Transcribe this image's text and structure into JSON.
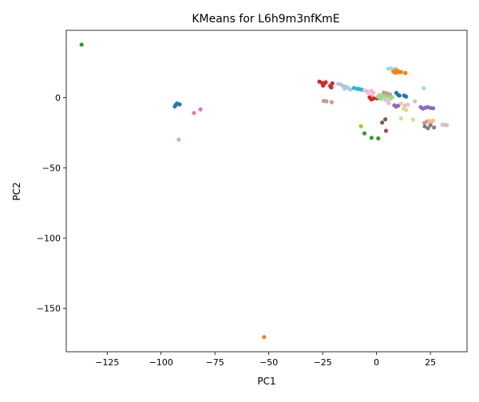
{
  "chart_data": {
    "type": "scatter",
    "title": "KMeans for L6h9m3nfKmE",
    "xlabel": "PC1",
    "ylabel": "PC2",
    "xlim": [
      -144,
      42
    ],
    "ylim": [
      -181,
      48
    ],
    "xticks": [
      -125,
      -100,
      -75,
      -50,
      -25,
      0,
      25
    ],
    "yticks": [
      0,
      -50,
      -100,
      -150
    ],
    "xtick_labels": [
      "−125",
      "−100",
      "−75",
      "−50",
      "−25",
      "0",
      "25"
    ],
    "ytick_labels": [
      "0",
      "−50",
      "−100",
      "−150"
    ],
    "grid": false,
    "legend": "none",
    "points": [
      {
        "x": -136.9,
        "y": 37.8,
        "color": "#2ca02c"
      },
      {
        "x": -52.2,
        "y": -170.6,
        "color": "#ff7f0e"
      },
      {
        "x": -93.1,
        "y": -5.0,
        "color": "#1f77b4"
      },
      {
        "x": -92.6,
        "y": -4.1,
        "color": "#1f77b4"
      },
      {
        "x": -91.4,
        "y": -4.8,
        "color": "#1f77b4"
      },
      {
        "x": -93.6,
        "y": -6.2,
        "color": "#1f77b4"
      },
      {
        "x": -91.8,
        "y": -29.9,
        "color": "#c5b0d5"
      },
      {
        "x": -84.7,
        "y": -10.9,
        "color": "#e377c2"
      },
      {
        "x": -81.7,
        "y": -8.3,
        "color": "#e377c2"
      },
      {
        "x": -26.5,
        "y": 11.4,
        "color": "#d62728"
      },
      {
        "x": -25.3,
        "y": 10.5,
        "color": "#d62728"
      },
      {
        "x": -24.3,
        "y": 9.8,
        "color": "#d62728"
      },
      {
        "x": -23.6,
        "y": 11.0,
        "color": "#d62728"
      },
      {
        "x": -24.8,
        "y": 8.6,
        "color": "#d62728"
      },
      {
        "x": -21.5,
        "y": 8.4,
        "color": "#d62728"
      },
      {
        "x": -20.5,
        "y": 10.2,
        "color": "#d62728"
      },
      {
        "x": -21.0,
        "y": 7.3,
        "color": "#d62728"
      },
      {
        "x": -24.5,
        "y": -2.3,
        "color": "#c49c94"
      },
      {
        "x": -23.2,
        "y": -2.6,
        "color": "#c49c94"
      },
      {
        "x": -20.8,
        "y": -3.2,
        "color": "#c49c94"
      },
      {
        "x": -17.8,
        "y": 9.8,
        "color": "#aec7e8"
      },
      {
        "x": -16.5,
        "y": 9.3,
        "color": "#aec7e8"
      },
      {
        "x": -15.4,
        "y": 8.2,
        "color": "#aec7e8"
      },
      {
        "x": -14.2,
        "y": 7.9,
        "color": "#aec7e8"
      },
      {
        "x": -13.4,
        "y": 7.1,
        "color": "#aec7e8"
      },
      {
        "x": -14.8,
        "y": 6.4,
        "color": "#aec7e8"
      },
      {
        "x": -12.1,
        "y": 5.8,
        "color": "#aec7e8"
      },
      {
        "x": -10.5,
        "y": 6.9,
        "color": "#17becf"
      },
      {
        "x": -9.0,
        "y": 6.3,
        "color": "#17becf"
      },
      {
        "x": -7.8,
        "y": 6.1,
        "color": "#17becf"
      },
      {
        "x": -6.7,
        "y": 5.6,
        "color": "#17becf"
      },
      {
        "x": -5.6,
        "y": 5.2,
        "color": "#f7b6d2"
      },
      {
        "x": -4.4,
        "y": 4.6,
        "color": "#f7b6d2"
      },
      {
        "x": -3.8,
        "y": 3.3,
        "color": "#f7b6d2"
      },
      {
        "x": -2.4,
        "y": 5.0,
        "color": "#f7b6d2"
      },
      {
        "x": -1.5,
        "y": 3.5,
        "color": "#f7b6d2"
      },
      {
        "x": -2.0,
        "y": 1.6,
        "color": "#f7b6d2"
      },
      {
        "x": -3.2,
        "y": 0.2,
        "color": "#d62728"
      },
      {
        "x": -2.4,
        "y": -1.2,
        "color": "#d62728"
      },
      {
        "x": -1.4,
        "y": -0.6,
        "color": "#d62728"
      },
      {
        "x": 0.2,
        "y": -0.4,
        "color": "#d62728"
      },
      {
        "x": 0.6,
        "y": 0.8,
        "color": "#98df8a"
      },
      {
        "x": 1.4,
        "y": 1.9,
        "color": "#98df8a"
      },
      {
        "x": 2.3,
        "y": 0.6,
        "color": "#98df8a"
      },
      {
        "x": 3.2,
        "y": 1.4,
        "color": "#98df8a"
      },
      {
        "x": 3.6,
        "y": 2.7,
        "color": "#98df8a"
      },
      {
        "x": 4.4,
        "y": 0.3,
        "color": "#98df8a"
      },
      {
        "x": 5.0,
        "y": 1.8,
        "color": "#98df8a"
      },
      {
        "x": 5.9,
        "y": 0.9,
        "color": "#98df8a"
      },
      {
        "x": 6.6,
        "y": -0.6,
        "color": "#98df8a"
      },
      {
        "x": 7.4,
        "y": 0.4,
        "color": "#98df8a"
      },
      {
        "x": 2.0,
        "y": -0.8,
        "color": "#98df8a"
      },
      {
        "x": 3.9,
        "y": -1.5,
        "color": "#f7b6d2"
      },
      {
        "x": 5.2,
        "y": -2.4,
        "color": "#f7b6d2"
      },
      {
        "x": 5.7,
        "y": -3.9,
        "color": "#f7b6d2"
      },
      {
        "x": 4.7,
        "y": 3.3,
        "color": "#c49c94"
      },
      {
        "x": 3.3,
        "y": 3.6,
        "color": "#c49c94"
      },
      {
        "x": 6.2,
        "y": 2.4,
        "color": "#c49c94"
      },
      {
        "x": 5.4,
        "y": 20.6,
        "color": "#9edae5"
      },
      {
        "x": 6.6,
        "y": 20.9,
        "color": "#9edae5"
      },
      {
        "x": 7.4,
        "y": 20.2,
        "color": "#9edae5"
      },
      {
        "x": 8.1,
        "y": 19.4,
        "color": "#9edae5"
      },
      {
        "x": 8.9,
        "y": 20.5,
        "color": "#9edae5"
      },
      {
        "x": 7.8,
        "y": 18.6,
        "color": "#ff7f0e"
      },
      {
        "x": 8.6,
        "y": 17.8,
        "color": "#ff7f0e"
      },
      {
        "x": 9.2,
        "y": 18.9,
        "color": "#ff7f0e"
      },
      {
        "x": 9.9,
        "y": 18.1,
        "color": "#ff7f0e"
      },
      {
        "x": 10.6,
        "y": 18.4,
        "color": "#ff7f0e"
      },
      {
        "x": 9.5,
        "y": 19.4,
        "color": "#ff7f0e"
      },
      {
        "x": 8.4,
        "y": 19.0,
        "color": "#ff7f0e"
      },
      {
        "x": 11.4,
        "y": 18.2,
        "color": "#ff7f0e"
      },
      {
        "x": 13.4,
        "y": 17.6,
        "color": "#ff7f0e"
      },
      {
        "x": 9.2,
        "y": 3.4,
        "color": "#1f77b4"
      },
      {
        "x": 10.0,
        "y": 2.1,
        "color": "#1f77b4"
      },
      {
        "x": 10.6,
        "y": 1.5,
        "color": "#1f77b4"
      },
      {
        "x": 12.8,
        "y": 1.6,
        "color": "#1f77b4"
      },
      {
        "x": 13.7,
        "y": 0.8,
        "color": "#1f77b4"
      },
      {
        "x": 8.3,
        "y": -5.4,
        "color": "#9467bd"
      },
      {
        "x": 9.1,
        "y": -6.4,
        "color": "#9467bd"
      },
      {
        "x": 10.1,
        "y": -5.6,
        "color": "#9467bd"
      },
      {
        "x": 11.4,
        "y": -4.1,
        "color": "#dbdb8d"
      },
      {
        "x": 12.6,
        "y": -7.9,
        "color": "#dbdb8d"
      },
      {
        "x": 13.8,
        "y": -8.9,
        "color": "#dbdb8d"
      },
      {
        "x": 13.1,
        "y": -5.5,
        "color": "#f7b6d2"
      },
      {
        "x": 14.5,
        "y": -5.0,
        "color": "#f7b6d2"
      },
      {
        "x": 17.8,
        "y": -2.6,
        "color": "#c7c7c7"
      },
      {
        "x": 21.9,
        "y": 6.7,
        "color": "#9edae5"
      },
      {
        "x": 20.5,
        "y": -6.7,
        "color": "#9467bd"
      },
      {
        "x": 21.5,
        "y": -7.8,
        "color": "#9467bd"
      },
      {
        "x": 22.6,
        "y": -7.2,
        "color": "#9467bd"
      },
      {
        "x": 23.7,
        "y": -6.7,
        "color": "#9467bd"
      },
      {
        "x": 25.0,
        "y": -7.3,
        "color": "#9467bd"
      },
      {
        "x": 26.3,
        "y": -7.5,
        "color": "#9467bd"
      },
      {
        "x": 11.4,
        "y": -14.8,
        "color": "#dbdb8d"
      },
      {
        "x": 17.0,
        "y": -15.7,
        "color": "#dbdb8d"
      },
      {
        "x": -7.2,
        "y": -20.3,
        "color": "#bcbd22"
      },
      {
        "x": 2.6,
        "y": -17.7,
        "color": "#8c564b"
      },
      {
        "x": 4.1,
        "y": -15.4,
        "color": "#8c564b"
      },
      {
        "x": 4.4,
        "y": -23.6,
        "color": "#8c564b"
      },
      {
        "x": -5.6,
        "y": -25.4,
        "color": "#2ca02c"
      },
      {
        "x": -2.3,
        "y": -28.6,
        "color": "#2ca02c"
      },
      {
        "x": 0.8,
        "y": -29.0,
        "color": "#2ca02c"
      },
      {
        "x": 22.2,
        "y": -18.0,
        "color": "#c49c94"
      },
      {
        "x": 23.4,
        "y": -17.0,
        "color": "#c49c94"
      },
      {
        "x": 24.6,
        "y": -16.6,
        "color": "#ffbb78"
      },
      {
        "x": 25.4,
        "y": -17.5,
        "color": "#ffbb78"
      },
      {
        "x": 26.2,
        "y": -16.4,
        "color": "#ffbb78"
      },
      {
        "x": 22.4,
        "y": -20.5,
        "color": "#7f7f7f"
      },
      {
        "x": 23.9,
        "y": -21.8,
        "color": "#7f7f7f"
      },
      {
        "x": 25.0,
        "y": -19.6,
        "color": "#7f7f7f"
      },
      {
        "x": 26.7,
        "y": -21.2,
        "color": "#7f7f7f"
      },
      {
        "x": 30.6,
        "y": -19.2,
        "color": "#c7c7c7"
      },
      {
        "x": 31.6,
        "y": -19.4,
        "color": "#c7c7c7"
      },
      {
        "x": 32.6,
        "y": -19.6,
        "color": "#c7c7c7"
      }
    ]
  }
}
